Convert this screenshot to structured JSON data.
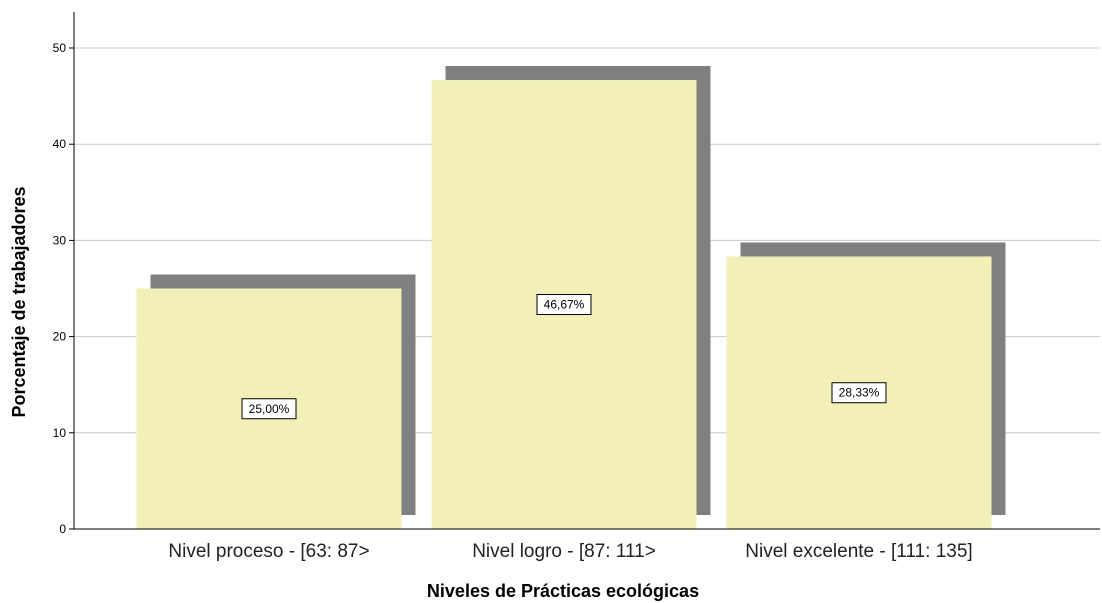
{
  "chart_data": {
    "type": "bar",
    "categories": [
      "Nivel proceso - [63: 87>",
      "Nivel logro - [87: 111>",
      "Nivel excelente - [111: 135]"
    ],
    "values": [
      25.0,
      46.67,
      28.33
    ],
    "data_labels": [
      "25,00%",
      "46,67%",
      "28,33%"
    ],
    "title": "",
    "xlabel": "Niveles de Prácticas ecológicas",
    "ylabel": "Porcentaje de trabajadores",
    "ylim": [
      0,
      50
    ],
    "yticks": [
      "0",
      "10",
      "20",
      "30",
      "40",
      "50"
    ],
    "grid": true,
    "shadow": true,
    "colors": {
      "bar": "#f2efb7",
      "shadow": "#808080",
      "grid": "#c8c8c8",
      "axis": "#000000"
    }
  }
}
